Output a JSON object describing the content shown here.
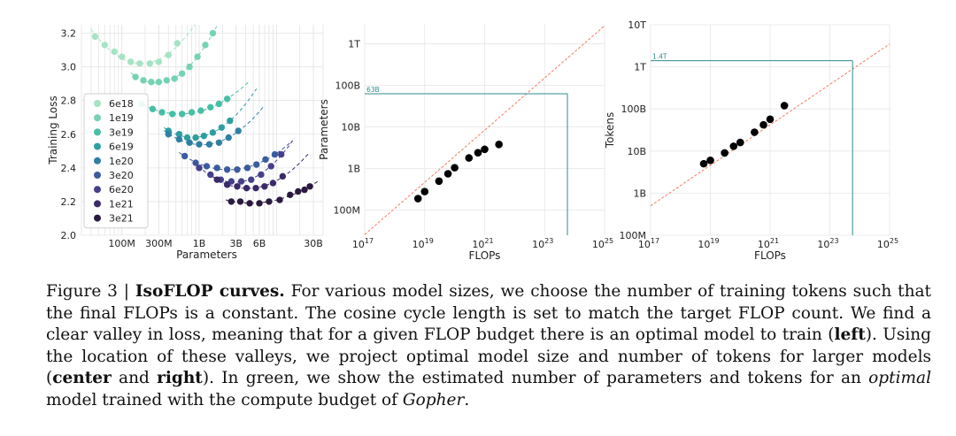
{
  "chart_data": [
    {
      "type": "scatter",
      "panel": "left",
      "title": "",
      "xlabel": "Parameters",
      "ylabel": "Training Loss",
      "x_scale": "log",
      "xlim": [
        30000000,
        40000000000
      ],
      "ylim": [
        2.0,
        3.25
      ],
      "x_ticks": [
        {
          "value": 100000000,
          "label": "100M"
        },
        {
          "value": 300000000,
          "label": "300M"
        },
        {
          "value": 1000000000,
          "label": "1B"
        },
        {
          "value": 3000000000,
          "label": "3B"
        },
        {
          "value": 6000000000,
          "label": "6B"
        },
        {
          "value": 30000000000,
          "label": "30B"
        }
      ],
      "y_ticks": [
        {
          "value": 2.0,
          "label": "2.0"
        },
        {
          "value": 2.2,
          "label": "2.2"
        },
        {
          "value": 2.4,
          "label": "2.4"
        },
        {
          "value": 2.6,
          "label": "2.6"
        },
        {
          "value": 2.8,
          "label": "2.8"
        },
        {
          "value": 3.0,
          "label": "3.0"
        },
        {
          "value": 3.2,
          "label": "3.2"
        }
      ],
      "legend_position": "left",
      "series": [
        {
          "name": "6e18",
          "color": "#a6e3c4",
          "x": [
            45000000,
            60000000,
            80000000,
            100000000,
            130000000,
            170000000,
            230000000,
            300000000,
            400000000,
            520000000
          ],
          "y": [
            3.18,
            3.13,
            3.09,
            3.06,
            3.03,
            3.02,
            3.02,
            3.03,
            3.07,
            3.14
          ],
          "fit_from": 40000000,
          "fit_to": 1800000000
        },
        {
          "name": "1e19",
          "color": "#76d3b2",
          "x": [
            150000000,
            190000000,
            240000000,
            300000000,
            380000000,
            480000000,
            600000000,
            750000000,
            950000000,
            1200000000,
            1500000000
          ],
          "y": [
            2.94,
            2.92,
            2.91,
            2.91,
            2.92,
            2.93,
            2.96,
            3.0,
            3.06,
            3.13,
            3.2
          ],
          "fit_from": 130000000,
          "fit_to": 2400000000
        },
        {
          "name": "3e19",
          "color": "#46bfa6",
          "x": [
            180000000,
            250000000,
            330000000,
            450000000,
            600000000,
            800000000,
            1050000000,
            1400000000,
            1800000000,
            2300000000
          ],
          "y": [
            2.78,
            2.75,
            2.73,
            2.72,
            2.72,
            2.73,
            2.74,
            2.76,
            2.78,
            2.81
          ],
          "fit_from": 160000000,
          "fit_to": 4500000000
        },
        {
          "name": "6e19",
          "color": "#2e9ea0",
          "x": [
            400000000,
            550000000,
            700000000,
            900000000,
            1150000000,
            1500000000,
            1950000000,
            2500000000
          ],
          "y": [
            2.62,
            2.6,
            2.58,
            2.58,
            2.59,
            2.61,
            2.64,
            2.68
          ],
          "fit_from": 350000000,
          "fit_to": 5500000000
        },
        {
          "name": "1e20",
          "color": "#2f7fa4",
          "x": [
            400000000,
            550000000,
            750000000,
            1000000000,
            1350000000,
            1800000000,
            2400000000,
            3200000000
          ],
          "y": [
            2.6,
            2.57,
            2.55,
            2.54,
            2.54,
            2.55,
            2.58,
            2.62
          ],
          "fit_from": 350000000,
          "fit_to": 7000000000
        },
        {
          "name": "3e20",
          "color": "#3b5c9e",
          "x": [
            650000000,
            900000000,
            1250000000,
            1700000000,
            2300000000,
            3100000000,
            4200000000,
            5500000000,
            7200000000,
            9500000000
          ],
          "y": [
            2.47,
            2.43,
            2.41,
            2.4,
            2.39,
            2.39,
            2.4,
            2.42,
            2.45,
            2.48
          ],
          "fit_from": 550000000,
          "fit_to": 16000000000
        },
        {
          "name": "6e20",
          "color": "#453f8c",
          "x": [
            1000000000,
            1400000000,
            1900000000,
            2600000000,
            3500000000,
            4700000000,
            6300000000,
            8500000000,
            11500000000
          ],
          "y": [
            2.4,
            2.36,
            2.33,
            2.32,
            2.32,
            2.33,
            2.36,
            2.41,
            2.48
          ],
          "fit_from": 850000000,
          "fit_to": 17000000000
        },
        {
          "name": "1e21",
          "color": "#3a2a68",
          "x": [
            1700000000,
            2300000000,
            3100000000,
            4100000000,
            5400000000,
            7000000000,
            9000000000,
            12000000000
          ],
          "y": [
            2.33,
            2.3,
            2.29,
            2.28,
            2.28,
            2.29,
            2.31,
            2.35
          ],
          "fit_from": 1500000000,
          "fit_to": 26000000000
        },
        {
          "name": "3e21",
          "color": "#2b1a3f",
          "x": [
            2600000000,
            3400000000,
            4500000000,
            6000000000,
            8000000000,
            11000000000,
            15000000000,
            19000000000,
            23000000000,
            27000000000
          ],
          "y": [
            2.2,
            2.2,
            2.19,
            2.19,
            2.2,
            2.21,
            2.24,
            2.26,
            2.27,
            2.29
          ],
          "fit_from": 2200000000,
          "fit_to": 34000000000
        }
      ]
    },
    {
      "type": "scatter",
      "panel": "center",
      "title": "",
      "xlabel": "FLOPs",
      "ylabel": "Parameters",
      "x_scale": "log",
      "y_scale": "log",
      "xlim": [
        1e+17,
        1e+25
      ],
      "ylim": [
        25000000,
        3000000000000
      ],
      "x_ticks": [
        {
          "value": 1e+17,
          "label": "10",
          "exp": "17"
        },
        {
          "value": 1e+19,
          "label": "10",
          "exp": "19"
        },
        {
          "value": 1e+21,
          "label": "10",
          "exp": "21"
        },
        {
          "value": 1e+23,
          "label": "10",
          "exp": "23"
        },
        {
          "value": 1e+25,
          "label": "10",
          "exp": "25"
        }
      ],
      "y_ticks": [
        {
          "value": 100000000,
          "label": "100M"
        },
        {
          "value": 1000000000,
          "label": "1B"
        },
        {
          "value": 10000000000,
          "label": "10B"
        },
        {
          "value": 100000000000,
          "label": "100B"
        },
        {
          "value": 1000000000000,
          "label": "1T"
        }
      ],
      "points": {
        "x": [
          6e+18,
          1e+19,
          3e+19,
          6e+19,
          1e+20,
          3e+20,
          6e+20,
          1e+21,
          3e+21
        ],
        "y": [
          190000000,
          280000000,
          500000000,
          750000000,
          1050000000,
          1800000000,
          2400000000,
          2900000000,
          3800000000
        ]
      },
      "fit_line": {
        "x": [
          1e+17,
          1e+25
        ],
        "y": [
          26000000,
          2700000000000
        ]
      },
      "highlight": {
        "x": 5.76e+23,
        "y": 63000000000,
        "label": "63B"
      },
      "colors": {
        "points": "#000000",
        "fit": "#f47c5c",
        "highlight": "#2e8b8b"
      }
    },
    {
      "type": "scatter",
      "panel": "right",
      "title": "",
      "xlabel": "FLOPs",
      "ylabel": "Tokens",
      "x_scale": "log",
      "y_scale": "log",
      "xlim": [
        1e+17,
        1e+25
      ],
      "ylim": [
        100000000,
        10000000000000
      ],
      "x_ticks": [
        {
          "value": 1e+17,
          "label": "10",
          "exp": "17"
        },
        {
          "value": 1e+19,
          "label": "10",
          "exp": "19"
        },
        {
          "value": 1e+21,
          "label": "10",
          "exp": "21"
        },
        {
          "value": 1e+23,
          "label": "10",
          "exp": "23"
        },
        {
          "value": 1e+25,
          "label": "10",
          "exp": "25"
        }
      ],
      "y_ticks": [
        {
          "value": 100000000,
          "label": "100M"
        },
        {
          "value": 1000000000,
          "label": "1B"
        },
        {
          "value": 10000000000,
          "label": "10B"
        },
        {
          "value": 100000000000,
          "label": "100B"
        },
        {
          "value": 1000000000000,
          "label": "1T"
        },
        {
          "value": 10000000000000,
          "label": "10T"
        }
      ],
      "points": {
        "x": [
          6e+18,
          1e+19,
          3e+19,
          6e+19,
          1e+20,
          3e+20,
          6e+20,
          1e+21,
          3e+21
        ],
        "y": [
          5000000000,
          6000000000,
          9000000000,
          13000000000,
          16000000000,
          28000000000,
          42000000000,
          57000000000,
          120000000000
        ]
      },
      "fit_line": {
        "x": [
          1e+17,
          1e+25
        ],
        "y": [
          500000000,
          3500000000000
        ]
      },
      "highlight": {
        "x": 5.76e+23,
        "y": 1400000000000,
        "label": "1.4T"
      },
      "colors": {
        "points": "#000000",
        "fit": "#f47c5c",
        "highlight": "#2e8b8b"
      }
    }
  ],
  "caption": {
    "label": "Figure 3 | ",
    "title": "IsoFLOP curves.",
    "text1": " For various model sizes, we choose the number of training tokens such that the final FLOPs is a constant. The cosine cycle length is set to match the target FLOP count. We find a clear valley in loss, meaning that for a given FLOP budget there is an optimal model to train (",
    "left": "left",
    "text2": "). Using the location of these valleys, we project optimal model size and number of tokens for larger models (",
    "center": "center",
    "and": " and ",
    "right": "right",
    "text3": "). In green, we show the estimated number of parameters and tokens for an ",
    "optimal": "optimal",
    "text4": " model trained with the compute budget of ",
    "gopher": "Gopher",
    "end": "."
  }
}
